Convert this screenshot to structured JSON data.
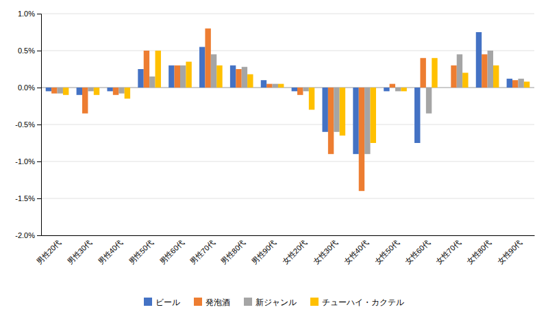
{
  "chart_data": {
    "type": "bar",
    "categories": [
      "男性20代",
      "男性30代",
      "男性40代",
      "男性50代",
      "男性60代",
      "男性70代",
      "男性80代",
      "男性90代",
      "女性20代",
      "女性30代",
      "女性40代",
      "女性50代",
      "女性60代",
      "女性70代",
      "女性80代",
      "女性90代"
    ],
    "series": [
      {
        "name": "ビール",
        "color": "#4472C4",
        "values": [
          -0.05,
          -0.1,
          -0.05,
          0.25,
          0.3,
          0.55,
          0.3,
          0.1,
          -0.05,
          -0.6,
          -0.9,
          -0.05,
          -0.75,
          0.0,
          0.75,
          0.12
        ]
      },
      {
        "name": "発泡酒",
        "color": "#ED7D31",
        "values": [
          -0.08,
          -0.35,
          -0.1,
          0.5,
          0.3,
          0.8,
          0.25,
          0.05,
          -0.1,
          -0.9,
          -1.4,
          0.05,
          0.4,
          0.3,
          0.45,
          0.1
        ]
      },
      {
        "name": "新ジャンル",
        "color": "#A5A5A5",
        "values": [
          -0.08,
          -0.05,
          -0.08,
          0.15,
          0.3,
          0.45,
          0.28,
          0.05,
          -0.05,
          -0.6,
          -0.9,
          -0.05,
          -0.35,
          0.45,
          0.5,
          0.12
        ]
      },
      {
        "name": "チューハイ・カクテル",
        "color": "#FFC000",
        "values": [
          -0.1,
          -0.1,
          -0.15,
          0.5,
          0.35,
          0.3,
          0.18,
          0.05,
          -0.3,
          -0.65,
          -0.75,
          -0.05,
          0.4,
          0.2,
          0.3,
          0.08
        ]
      }
    ],
    "ylim": [
      -2.0,
      1.0
    ],
    "yticks": [
      {
        "value": -2.0,
        "label": "-2.0%"
      },
      {
        "value": -1.5,
        "label": "-1.5%"
      },
      {
        "value": -1.0,
        "label": "-1.0%"
      },
      {
        "value": -0.5,
        "label": "-0.5%"
      },
      {
        "value": 0.0,
        "label": "0.0%"
      },
      {
        "value": 0.5,
        "label": "0.5%"
      },
      {
        "value": 1.0,
        "label": "1.0%"
      }
    ],
    "grid": true,
    "legend": "bottom"
  }
}
